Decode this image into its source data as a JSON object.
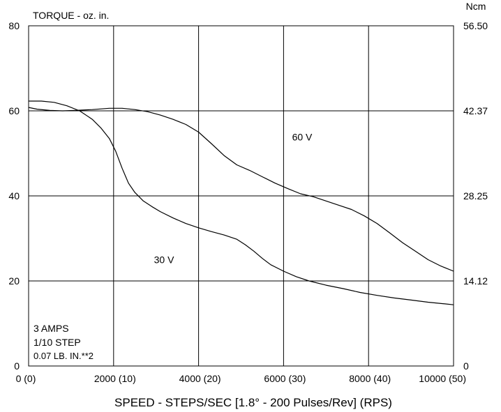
{
  "chart_data": {
    "type": "line",
    "title": "TORQUE - oz. in.",
    "right_unit": "Ncm",
    "xlabel": "SPEED - STEPS/SEC [1.8° - 200 Pulses/Rev] (RPS)",
    "xlim": [
      0,
      10000
    ],
    "ylim": [
      0,
      80
    ],
    "grid": true,
    "x_ticks": [
      {
        "value": 0,
        "label": "0 (0)"
      },
      {
        "value": 2000,
        "label": "2000 (10)"
      },
      {
        "value": 4000,
        "label": "4000 (20)"
      },
      {
        "value": 6000,
        "label": "6000 (30)"
      },
      {
        "value": 8000,
        "label": "8000 (40)"
      },
      {
        "value": 10000,
        "label": "10000 (50)"
      }
    ],
    "y_ticks": [
      {
        "value": 0,
        "label": "0"
      },
      {
        "value": 20,
        "label": "20"
      },
      {
        "value": 40,
        "label": "40"
      },
      {
        "value": 60,
        "label": "60"
      },
      {
        "value": 80,
        "label": "80"
      }
    ],
    "y2_ticks": [
      {
        "value": 0,
        "label": "0"
      },
      {
        "value": 20,
        "label": "14.12"
      },
      {
        "value": 40,
        "label": "28.25"
      },
      {
        "value": 60,
        "label": "42.37"
      },
      {
        "value": 80,
        "label": "56.50"
      }
    ],
    "notes": [
      "3 AMPS",
      "1/10 STEP",
      "0.07 LB. IN.**2"
    ],
    "series": [
      {
        "name": "60 V",
        "label_at": [
          6200,
          53.0
        ],
        "x": [
          0,
          200,
          500,
          800,
          1100,
          1500,
          1900,
          2200,
          2500,
          2800,
          3100,
          3400,
          3700,
          4000,
          4300,
          4600,
          4900,
          5200,
          5500,
          5800,
          6100,
          6400,
          6700,
          7000,
          7300,
          7600,
          7900,
          8200,
          8500,
          8800,
          9100,
          9400,
          9700,
          10000
        ],
        "y": [
          60.8,
          60.4,
          60.1,
          60.0,
          60.1,
          60.3,
          60.6,
          60.6,
          60.3,
          59.8,
          59.0,
          58.0,
          56.8,
          55.0,
          52.3,
          49.5,
          47.3,
          46.0,
          44.5,
          43.0,
          41.7,
          40.5,
          39.8,
          38.8,
          37.8,
          36.8,
          35.3,
          33.5,
          31.3,
          29.0,
          27.0,
          25.0,
          23.5,
          22.3
        ]
      },
      {
        "name": "30 V",
        "label_at": [
          2950,
          24.2
        ],
        "x": [
          0,
          300,
          600,
          900,
          1200,
          1500,
          1700,
          1900,
          2050,
          2200,
          2350,
          2500,
          2700,
          2900,
          3100,
          3400,
          3700,
          4000,
          4300,
          4600,
          4900,
          5100,
          5300,
          5500,
          5700,
          6000,
          6300,
          6600,
          7000,
          7400,
          7800,
          8200,
          8600,
          9000,
          9400,
          9800,
          10000
        ],
        "y": [
          62.3,
          62.3,
          62.0,
          61.2,
          60.0,
          58.0,
          56.0,
          53.5,
          50.5,
          46.5,
          43.0,
          40.8,
          38.8,
          37.5,
          36.3,
          34.8,
          33.5,
          32.5,
          31.6,
          30.8,
          29.8,
          28.5,
          27.0,
          25.3,
          23.8,
          22.3,
          21.0,
          20.0,
          19.0,
          18.2,
          17.3,
          16.6,
          16.0,
          15.5,
          15.0,
          14.6,
          14.4
        ]
      }
    ]
  }
}
